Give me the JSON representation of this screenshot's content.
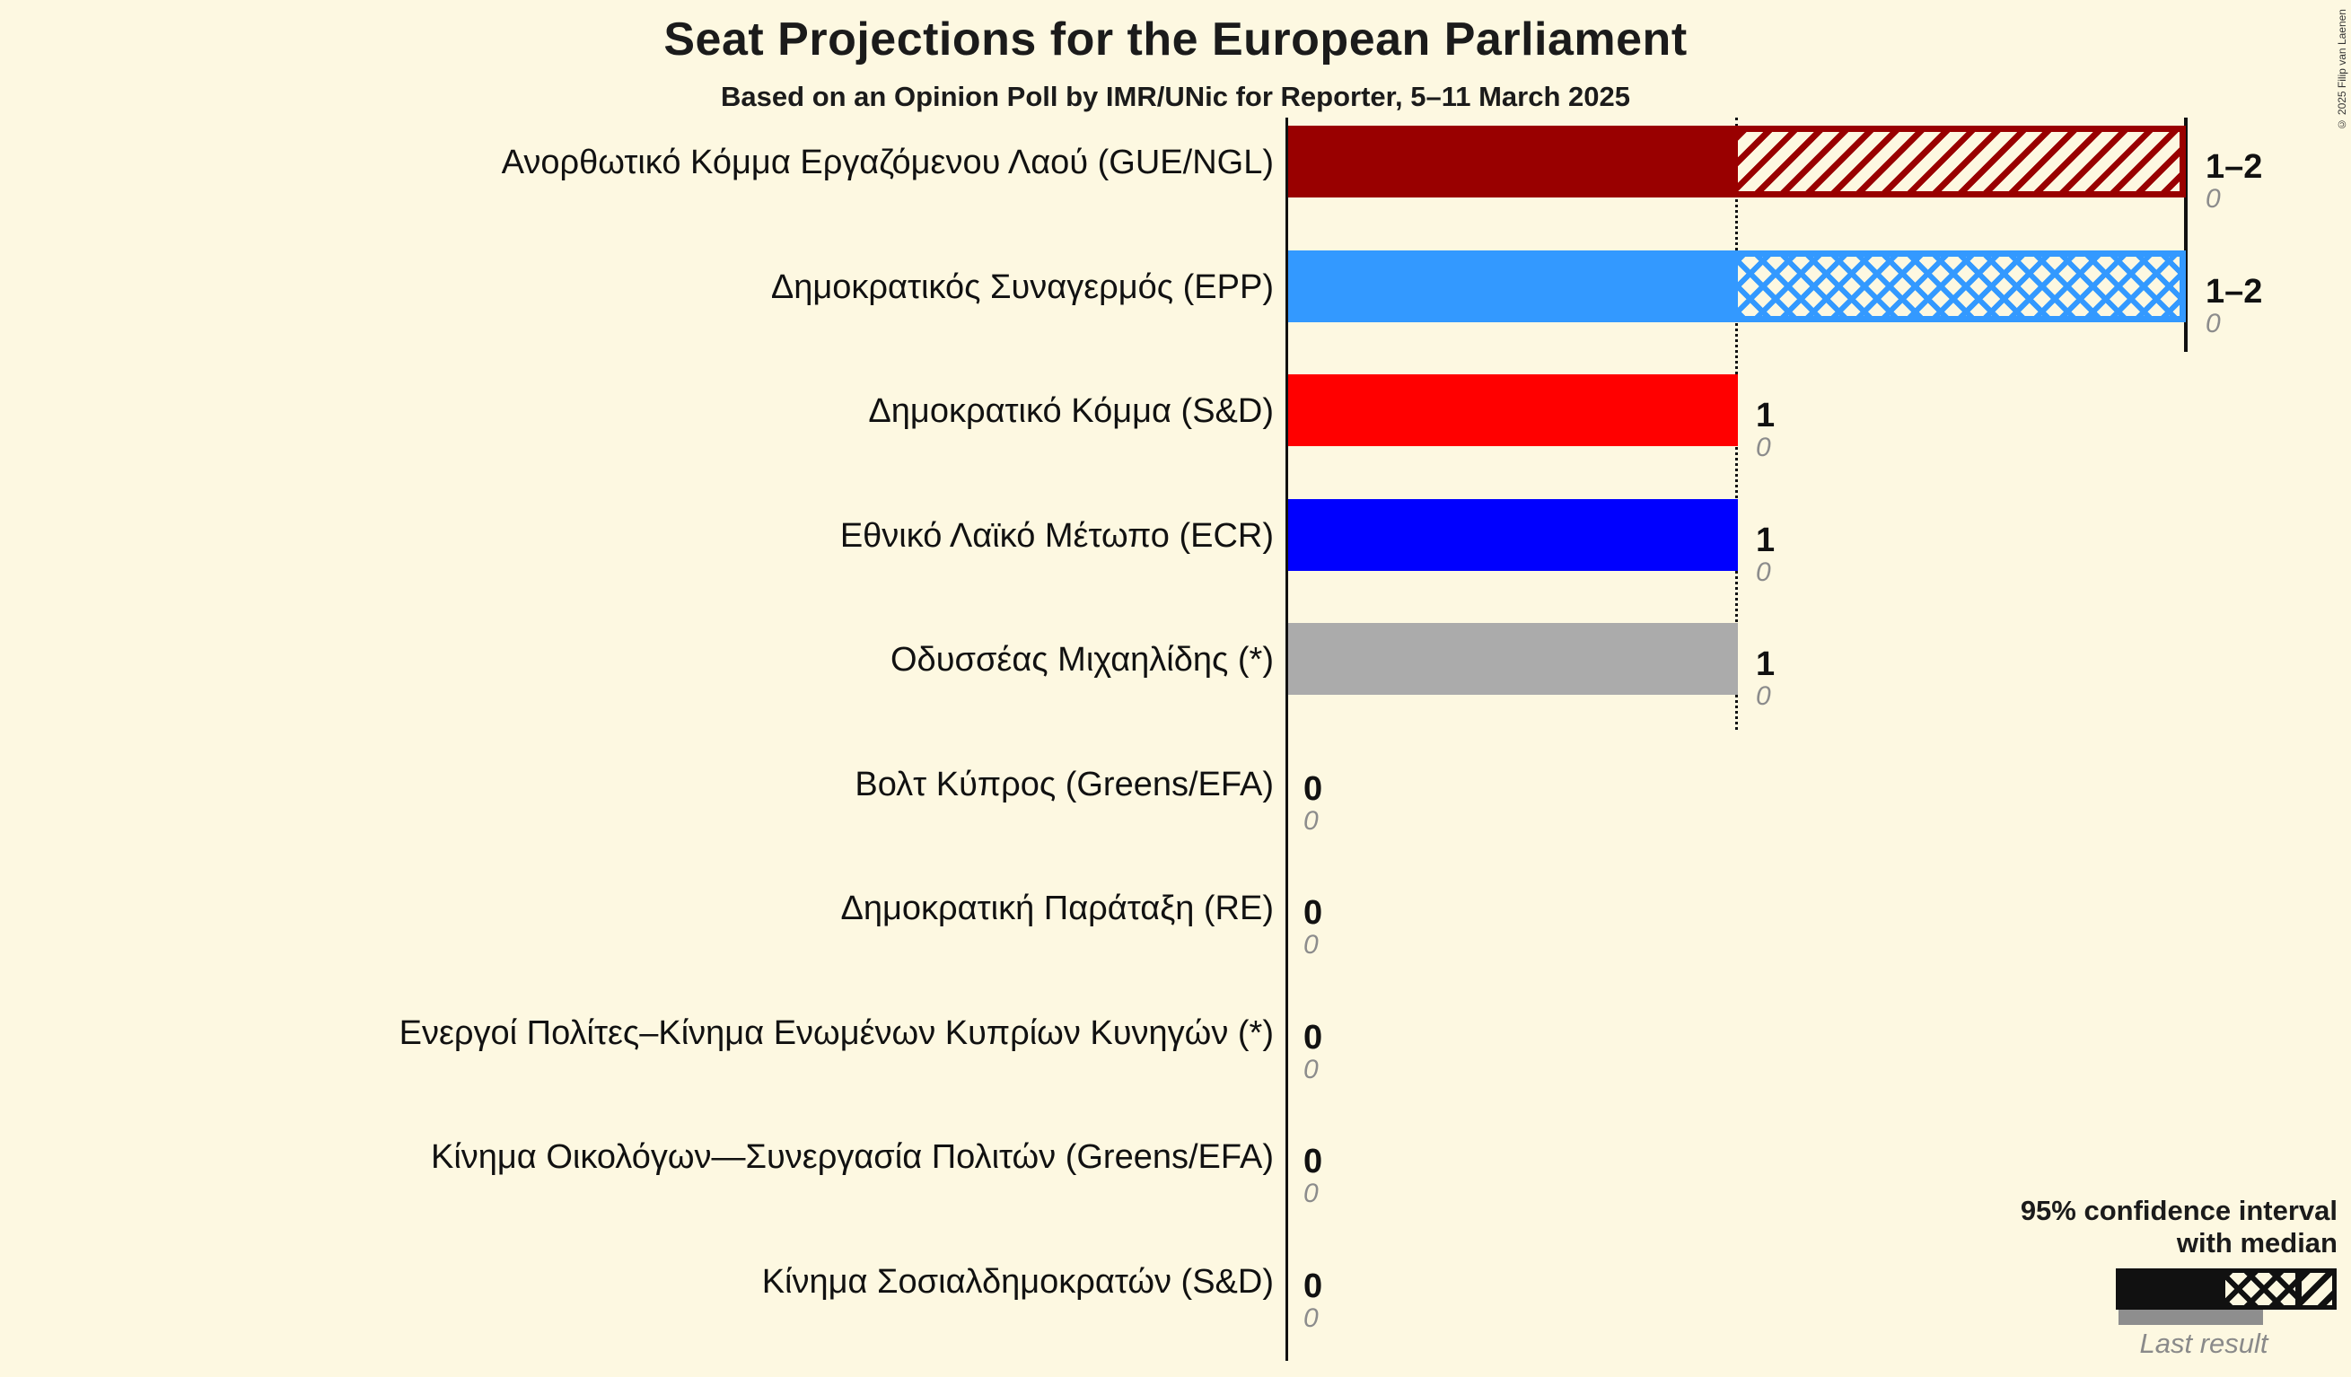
{
  "title": "Seat Projections for the European Parliament",
  "subtitle": "Based on an Opinion Poll by IMR/UNic for Reporter, 5–11 March 2025",
  "copyright": "© 2025 Filip van Laenen",
  "legend": {
    "ci_label_line1": "95% confidence interval",
    "ci_label_line2": "with median",
    "last_result_label": "Last result"
  },
  "colors": {
    "background": "#FDF8E1",
    "axis": "#111111",
    "value_text": "#111111",
    "last_result_text": "#8C8C8C",
    "legend_gray_bar": "#8E8E8E"
  },
  "chart_data": {
    "type": "bar",
    "orientation": "horizontal",
    "x_axis": {
      "min_seats": 0,
      "max_seats": 2,
      "gridline_seat_1": "dotted",
      "median_line_seat_2": "solid"
    },
    "series": [
      {
        "party": "Ανορθωτικό Κόμμα Εργαζόμενου Λαού (GUE/NGL)",
        "ci_low": 1,
        "ci_high": 2,
        "median": 1,
        "value_label": "1–2",
        "last_result": "0",
        "color": "#990000",
        "hatch": "diagonal"
      },
      {
        "party": "Δημοκρατικός Συναγερμός (EPP)",
        "ci_low": 1,
        "ci_high": 2,
        "median": 2,
        "value_label": "1–2",
        "last_result": "0",
        "color": "#3399FF",
        "hatch": "cross"
      },
      {
        "party": "Δημοκρατικό Κόμμα (S&D)",
        "ci_low": 1,
        "ci_high": 1,
        "median": 1,
        "value_label": "1",
        "last_result": "0",
        "color": "#FF0000",
        "hatch": "none"
      },
      {
        "party": "Εθνικό Λαϊκό Μέτωπο (ECR)",
        "ci_low": 1,
        "ci_high": 1,
        "median": 1,
        "value_label": "1",
        "last_result": "0",
        "color": "#0000FF",
        "hatch": "none"
      },
      {
        "party": "Οδυσσέας Μιχαηλίδης (*)",
        "ci_low": 1,
        "ci_high": 1,
        "median": 1,
        "value_label": "1",
        "last_result": "0",
        "color": "#ABABAB",
        "hatch": "none"
      },
      {
        "party": "Βολτ Κύπρος (Greens/EFA)",
        "ci_low": 0,
        "ci_high": 0,
        "median": 0,
        "value_label": "0",
        "last_result": "0",
        "color": null,
        "hatch": "none"
      },
      {
        "party": "Δημοκρατική Παράταξη (RE)",
        "ci_low": 0,
        "ci_high": 0,
        "median": 0,
        "value_label": "0",
        "last_result": "0",
        "color": null,
        "hatch": "none"
      },
      {
        "party": "Ενεργοί Πολίτες–Κίνημα Ενωμένων Κυπρίων Κυνηγών (*)",
        "ci_low": 0,
        "ci_high": 0,
        "median": 0,
        "value_label": "0",
        "last_result": "0",
        "color": null,
        "hatch": "none"
      },
      {
        "party": "Κίνημα Οικολόγων—Συνεργασία Πολιτών (Greens/EFA)",
        "ci_low": 0,
        "ci_high": 0,
        "median": 0,
        "value_label": "0",
        "last_result": "0",
        "color": null,
        "hatch": "none"
      },
      {
        "party": "Κίνημα Σοσιαλδημοκρατών (S&D)",
        "ci_low": 0,
        "ci_high": 0,
        "median": 0,
        "value_label": "0",
        "last_result": "0",
        "color": null,
        "hatch": "none"
      }
    ]
  }
}
